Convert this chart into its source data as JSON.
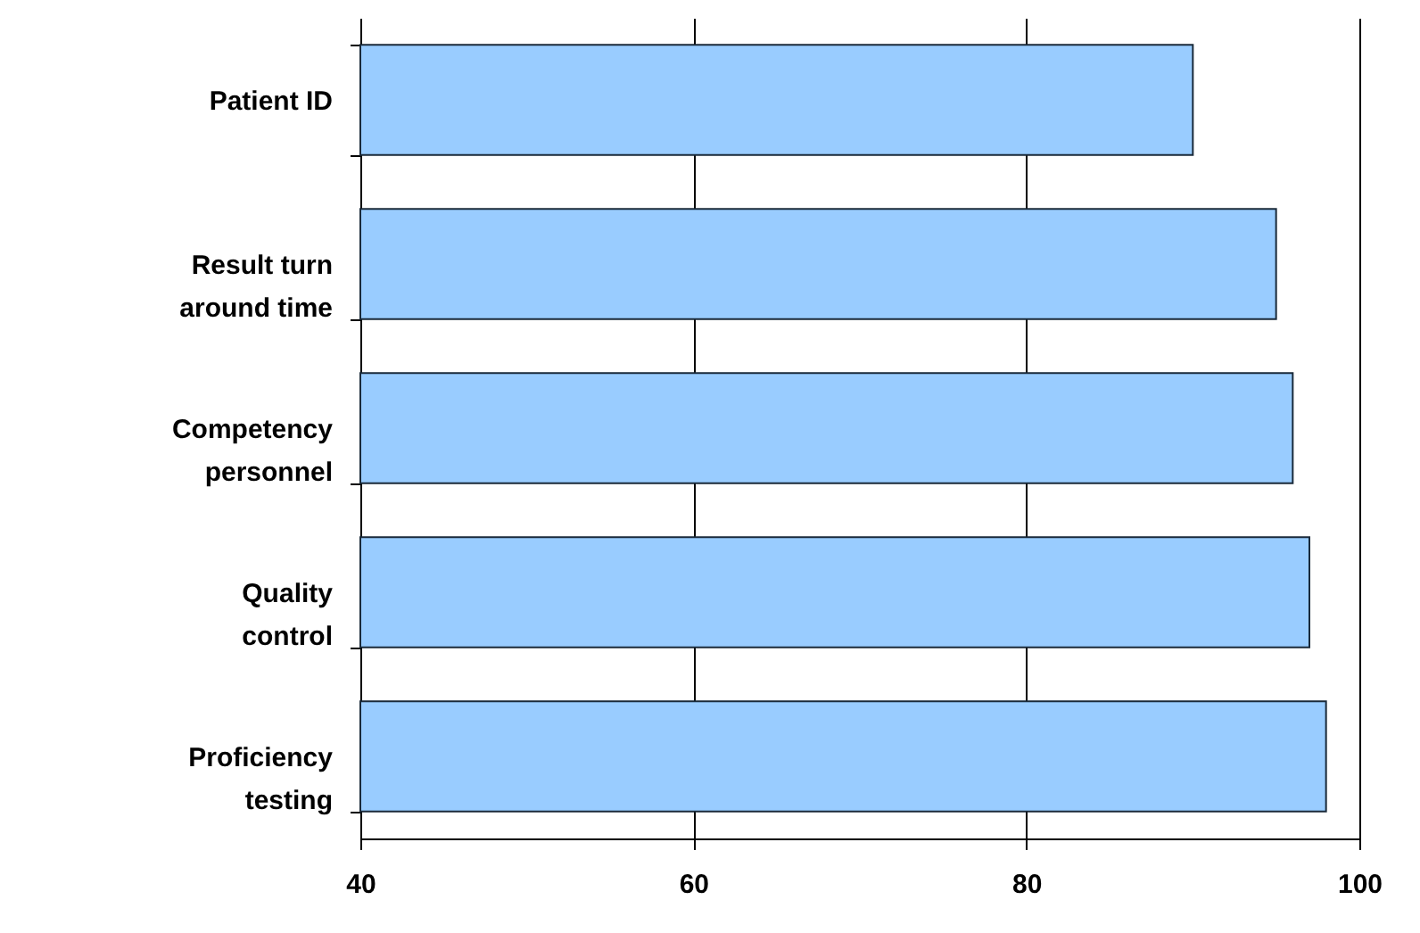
{
  "chart_data": {
    "type": "bar",
    "orientation": "horizontal",
    "categories": [
      "Patient ID",
      "Result turn around time",
      "Competency personnel",
      "Quality control",
      "Proficiency testing"
    ],
    "values": [
      90,
      95,
      96,
      97,
      98
    ],
    "color": "#99ccff",
    "xlim": [
      40,
      100
    ],
    "xticks": [
      40,
      60,
      80,
      100
    ],
    "grid": "x"
  }
}
